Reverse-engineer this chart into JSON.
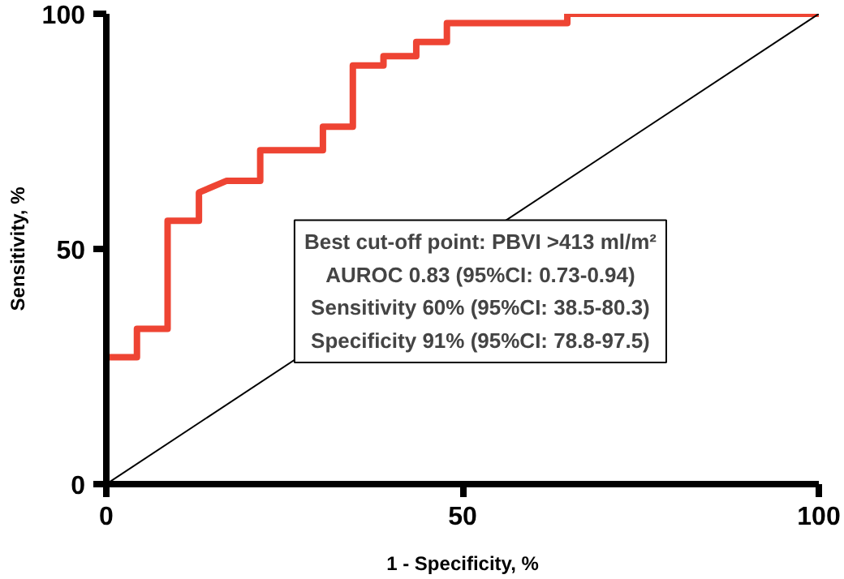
{
  "chart_data": {
    "type": "line",
    "xlabel": "1 - Specificity, %",
    "ylabel": "Sensitivity, %",
    "xlim": [
      0,
      100
    ],
    "ylim": [
      0,
      100
    ],
    "xticks": [
      0,
      50,
      100
    ],
    "yticks": [
      0,
      50,
      100
    ],
    "grid": false,
    "marker": "none",
    "line_style": "solid",
    "series": [
      {
        "color": "#ee4433",
        "x": [
          0,
          0,
          4.3,
          4.3,
          8.6,
          8.6,
          13,
          13,
          16.9,
          21.6,
          21.6,
          30.4,
          30.4,
          34.6,
          34.6,
          38.9,
          38.9,
          43.5,
          43.5,
          47.8,
          47.8,
          64.7,
          64.7,
          100
        ],
        "values": [
          0,
          27,
          27,
          33,
          33,
          56,
          56,
          62,
          64.5,
          64.5,
          71,
          71,
          76,
          76,
          89,
          89,
          91,
          91,
          94,
          94,
          98,
          98,
          100,
          100
        ]
      },
      {
        "color": "#000000",
        "type": "line",
        "x": [
          0,
          100
        ],
        "values": [
          0,
          100
        ]
      }
    ],
    "annotations": [
      "Best cut-off point: PBVI >413 ml/m²",
      "AUROC 0.83 (95%CI: 0.73-0.94)",
      "Sensitivity 60% (95%CI: 38.5-80.3)",
      "Specificity 91% (95%CI: 78.8-97.5)"
    ]
  }
}
